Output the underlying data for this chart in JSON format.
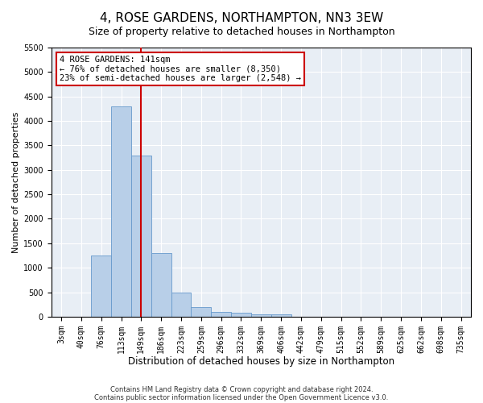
{
  "title": "4, ROSE GARDENS, NORTHAMPTON, NN3 3EW",
  "subtitle": "Size of property relative to detached houses in Northampton",
  "xlabel": "Distribution of detached houses by size in Northampton",
  "ylabel": "Number of detached properties",
  "footnote1": "Contains HM Land Registry data © Crown copyright and database right 2024.",
  "footnote2": "Contains public sector information licensed under the Open Government Licence v3.0.",
  "categories": [
    "3sqm",
    "40sqm",
    "76sqm",
    "113sqm",
    "149sqm",
    "186sqm",
    "223sqm",
    "259sqm",
    "296sqm",
    "332sqm",
    "369sqm",
    "406sqm",
    "442sqm",
    "479sqm",
    "515sqm",
    "552sqm",
    "589sqm",
    "625sqm",
    "662sqm",
    "698sqm",
    "735sqm"
  ],
  "values": [
    0,
    0,
    1250,
    4300,
    3300,
    1300,
    500,
    200,
    100,
    75,
    50,
    50,
    0,
    0,
    0,
    0,
    0,
    0,
    0,
    0,
    0
  ],
  "bar_color": "#b8cfe8",
  "bar_edge_color": "#6699cc",
  "vline_x_index": 4,
  "vline_color": "#cc0000",
  "annotation_line1": "4 ROSE GARDENS: 141sqm",
  "annotation_line2": "← 76% of detached houses are smaller (8,350)",
  "annotation_line3": "23% of semi-detached houses are larger (2,548) →",
  "annotation_box_color": "#ffffff",
  "annotation_box_edge_color": "#cc0000",
  "ylim": [
    0,
    5500
  ],
  "yticks": [
    0,
    500,
    1000,
    1500,
    2000,
    2500,
    3000,
    3500,
    4000,
    4500,
    5000,
    5500
  ],
  "bg_color": "#e8eef5",
  "fig_bg_color": "#ffffff",
  "title_fontsize": 11,
  "subtitle_fontsize": 9,
  "tick_fontsize": 7,
  "ylabel_fontsize": 8,
  "xlabel_fontsize": 8.5,
  "annotation_fontsize": 7.5,
  "footnote_fontsize": 6
}
